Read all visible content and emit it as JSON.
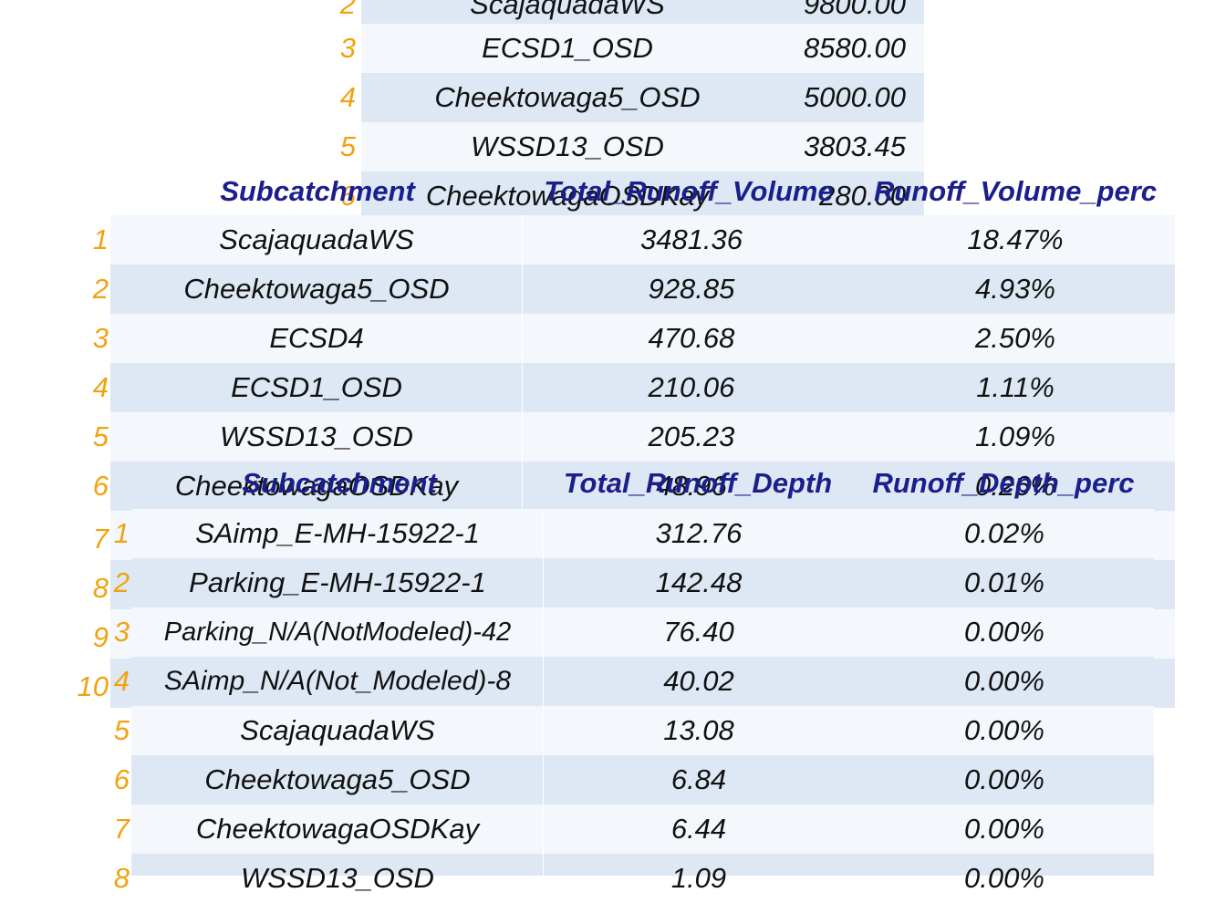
{
  "table1": {
    "headers": [
      "Subcatchment",
      "Total_Runoff_Volume",
      "Runoff_Volume_perc"
    ],
    "rows": [
      {
        "idx": "2",
        "name": "ScajaquadaWS",
        "value": "9800.00"
      },
      {
        "idx": "3",
        "name": "ECSD1_OSD",
        "value": "8580.00"
      },
      {
        "idx": "4",
        "name": "Cheektowaga5_OSD",
        "value": "5000.00"
      },
      {
        "idx": "5",
        "name": "WSSD13_OSD",
        "value": "3803.45"
      },
      {
        "idx": "6",
        "name": "CheektowagaOSDKay",
        "value": "280.00"
      }
    ]
  },
  "table2": {
    "rows": [
      {
        "idx": "1",
        "name": "ScajaquadaWS",
        "volume": "3481.36",
        "perc": "18.47%"
      },
      {
        "idx": "2",
        "name": "Cheektowaga5_OSD",
        "volume": "928.85",
        "perc": "4.93%"
      },
      {
        "idx": "3",
        "name": "ECSD4",
        "volume": "470.68",
        "perc": "2.50%"
      },
      {
        "idx": "4",
        "name": "ECSD1_OSD",
        "volume": "210.06",
        "perc": "1.11%"
      },
      {
        "idx": "5",
        "name": "WSSD13_OSD",
        "volume": "205.23",
        "perc": "1.09%"
      },
      {
        "idx": "6",
        "name": "CheektowagaOSDKay",
        "volume": "48.96",
        "perc": "0.26%"
      },
      {
        "idx": "7",
        "name": "",
        "volume": "",
        "perc": ""
      },
      {
        "idx": "8",
        "name": "",
        "volume": "",
        "perc": ""
      },
      {
        "idx": "9",
        "name": "",
        "volume": "",
        "perc": ""
      },
      {
        "idx": "10",
        "name": "",
        "volume": "",
        "perc": ""
      }
    ]
  },
  "table3": {
    "headers": [
      "Subcatchment",
      "Total_Runoff_Depth",
      "Runoff_Depth_perc"
    ],
    "rows": [
      {
        "idx": "1",
        "name": "SAimp_E-MH-15922-1",
        "depth": "312.76",
        "perc": "0.02%"
      },
      {
        "idx": "2",
        "name": "Parking_E-MH-15922-1",
        "depth": "142.48",
        "perc": "0.01%"
      },
      {
        "idx": "3",
        "name": "Parking_N/A(NotModeled)-42",
        "depth": "76.40",
        "perc": "0.00%"
      },
      {
        "idx": "4",
        "name": "SAimp_N/A(Not_Modeled)-8",
        "depth": "40.02",
        "perc": "0.00%"
      },
      {
        "idx": "5",
        "name": "ScajaquadaWS",
        "depth": "13.08",
        "perc": "0.00%"
      },
      {
        "idx": "6",
        "name": "Cheektowaga5_OSD",
        "depth": "6.84",
        "perc": "0.00%"
      },
      {
        "idx": "7",
        "name": "CheektowagaOSDKay",
        "depth": "6.44",
        "perc": "0.00%"
      },
      {
        "idx": "8",
        "name": "WSSD13_OSD",
        "depth": "1.09",
        "perc": "0.00%"
      }
    ]
  }
}
